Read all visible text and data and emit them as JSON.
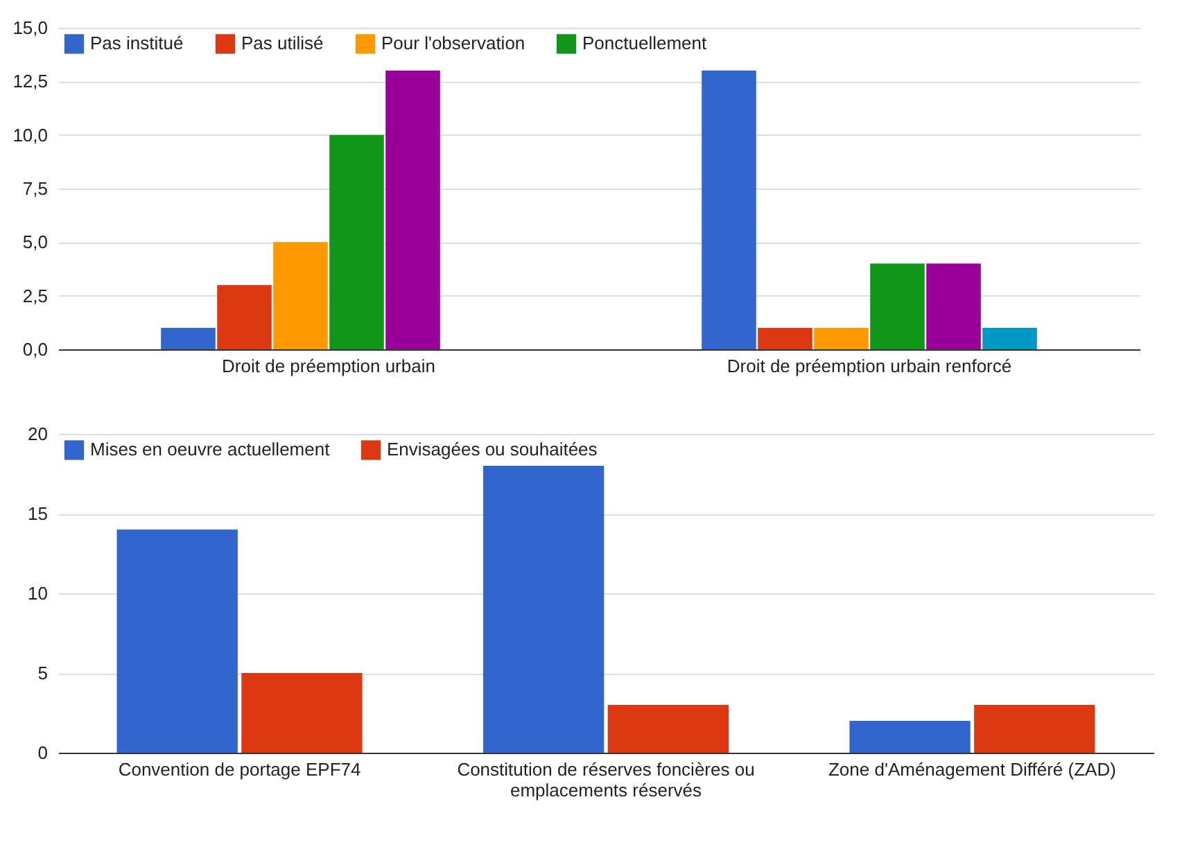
{
  "chart_data": [
    {
      "type": "bar",
      "categories": [
        "Droit de préemption urbain",
        "Droit de préemption urbain renforcé"
      ],
      "series": [
        {
          "name": "Pas institué",
          "color": "#3366cc",
          "values": [
            1,
            13
          ]
        },
        {
          "name": "Pas utilisé",
          "color": "#dc3912",
          "values": [
            3,
            1
          ]
        },
        {
          "name": "Pour l'observation",
          "color": "#ff9900",
          "values": [
            5,
            1
          ]
        },
        {
          "name": "Ponctuellement",
          "color": "#109618",
          "values": [
            10,
            4
          ]
        },
        {
          "color": "#990099",
          "values": [
            13,
            4
          ]
        },
        {
          "color": "#0099c6",
          "values": [
            0,
            1
          ]
        }
      ],
      "ylim": [
        0,
        15
      ],
      "yticks": [
        {
          "value": 0,
          "label": "0,0"
        },
        {
          "value": 2.5,
          "label": "2,5"
        },
        {
          "value": 5,
          "label": "5,0"
        },
        {
          "value": 7.5,
          "label": "7,5"
        },
        {
          "value": 10,
          "label": "10,0"
        },
        {
          "value": 12.5,
          "label": "12,5"
        },
        {
          "value": 15,
          "label": "15,0"
        }
      ],
      "grid": true,
      "legend": "top left"
    },
    {
      "type": "bar",
      "categories": [
        "Convention de portage EPF74",
        "Constitution de réserves foncières ou emplacements réservés",
        "Zone d'Aménagement Différé (ZAD)"
      ],
      "series": [
        {
          "name": "Mises en oeuvre actuellement",
          "color": "#3366cc",
          "values": [
            14,
            18,
            2
          ]
        },
        {
          "name": "Envisagées ou souhaitées",
          "color": "#dc3912",
          "values": [
            5,
            3,
            3
          ]
        }
      ],
      "ylim": [
        0,
        20
      ],
      "yticks": [
        0,
        5,
        10,
        15,
        20
      ],
      "grid": true,
      "legend": "top left"
    }
  ]
}
